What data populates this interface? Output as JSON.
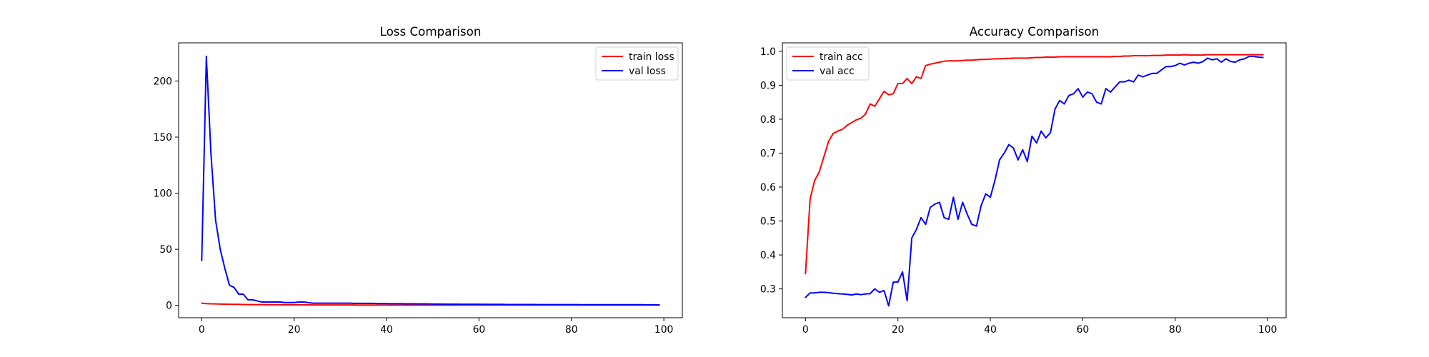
{
  "chart_data": [
    {
      "type": "line",
      "title": "Loss Comparison",
      "xlabel": "",
      "ylabel": "",
      "xlim": [
        -5,
        104
      ],
      "ylim": [
        -11,
        234
      ],
      "xticks": [
        0,
        20,
        40,
        60,
        80,
        100
      ],
      "yticks": [
        0,
        50,
        100,
        150,
        200
      ],
      "grid": false,
      "legend": "upper right",
      "series": [
        {
          "name": "train loss",
          "color": "#ff0000",
          "x": [
            0,
            1,
            2,
            3,
            4,
            5,
            6,
            7,
            8,
            9,
            10,
            11,
            12,
            13,
            14,
            15,
            16,
            17,
            18,
            19,
            20,
            21,
            22,
            23,
            24,
            25,
            26,
            27,
            28,
            29,
            30,
            31,
            32,
            33,
            34,
            35,
            36,
            37,
            38,
            39,
            40,
            41,
            42,
            43,
            44,
            45,
            46,
            47,
            48,
            49,
            50,
            51,
            52,
            53,
            54,
            55,
            56,
            57,
            58,
            59,
            60,
            61,
            62,
            63,
            64,
            65,
            66,
            67,
            68,
            69,
            70,
            71,
            72,
            73,
            74,
            75,
            76,
            77,
            78,
            79,
            80,
            81,
            82,
            83,
            84,
            85,
            86,
            87,
            88,
            89,
            90,
            91,
            92,
            93,
            94,
            95,
            96,
            97,
            98,
            99
          ],
          "y": [
            2.0,
            1.6,
            1.4,
            1.3,
            1.2,
            1.1,
            1.0,
            0.9,
            0.9,
            0.8,
            0.8,
            0.7,
            0.7,
            0.7,
            0.6,
            0.6,
            0.6,
            0.6,
            0.5,
            0.5,
            0.5,
            0.5,
            0.5,
            0.5,
            0.4,
            0.4,
            0.4,
            0.4,
            0.4,
            0.4,
            0.4,
            0.4,
            0.4,
            0.4,
            0.3,
            0.3,
            0.3,
            0.3,
            0.3,
            0.3,
            0.3,
            0.3,
            0.3,
            0.3,
            0.3,
            0.3,
            0.3,
            0.3,
            0.3,
            0.3,
            0.3,
            0.3,
            0.3,
            0.3,
            0.3,
            0.3,
            0.3,
            0.3,
            0.3,
            0.3,
            0.3,
            0.3,
            0.3,
            0.3,
            0.3,
            0.3,
            0.3,
            0.3,
            0.3,
            0.3,
            0.3,
            0.3,
            0.3,
            0.3,
            0.3,
            0.3,
            0.3,
            0.3,
            0.3,
            0.3,
            0.3,
            0.3,
            0.3,
            0.3,
            0.3,
            0.3,
            0.3,
            0.3,
            0.3,
            0.3,
            0.3,
            0.3,
            0.3,
            0.3,
            0.3,
            0.3,
            0.3,
            0.3,
            0.3,
            0.3
          ]
        },
        {
          "name": "val loss",
          "color": "#0000ff",
          "x": [
            0,
            1,
            2,
            3,
            4,
            5,
            6,
            7,
            8,
            9,
            10,
            11,
            12,
            13,
            14,
            15,
            16,
            17,
            18,
            19,
            20,
            21,
            22,
            23,
            24,
            25,
            26,
            27,
            28,
            29,
            30,
            31,
            32,
            33,
            34,
            35,
            36,
            37,
            38,
            39,
            40,
            41,
            42,
            43,
            44,
            45,
            46,
            47,
            48,
            49,
            50,
            51,
            52,
            53,
            54,
            55,
            56,
            57,
            58,
            59,
            60,
            61,
            62,
            63,
            64,
            65,
            66,
            67,
            68,
            69,
            70,
            71,
            72,
            73,
            74,
            75,
            76,
            77,
            78,
            79,
            80,
            81,
            82,
            83,
            84,
            85,
            86,
            87,
            88,
            89,
            90,
            91,
            92,
            93,
            94,
            95,
            96,
            97,
            98,
            99
          ],
          "y": [
            40,
            222,
            135,
            76,
            50,
            33,
            18,
            16,
            10,
            10,
            5,
            5,
            4,
            3,
            3,
            3,
            3,
            3,
            2.5,
            2.5,
            2.5,
            3,
            3,
            2.5,
            2,
            2,
            2,
            2,
            2,
            2,
            2,
            2,
            2,
            1.8,
            1.8,
            1.8,
            1.8,
            1.8,
            1.6,
            1.6,
            1.6,
            1.5,
            1.5,
            1.5,
            1.4,
            1.4,
            1.4,
            1.3,
            1.3,
            1.3,
            1.2,
            1.2,
            1.2,
            1.1,
            1.1,
            1.1,
            1.0,
            1.0,
            1.0,
            1.0,
            1.0,
            0.9,
            0.9,
            0.9,
            0.9,
            0.9,
            0.8,
            0.8,
            0.8,
            0.8,
            0.8,
            0.8,
            0.8,
            0.7,
            0.7,
            0.7,
            0.7,
            0.7,
            0.7,
            0.7,
            0.7,
            0.7,
            0.6,
            0.6,
            0.6,
            0.6,
            0.6,
            0.6,
            0.6,
            0.6,
            0.6,
            0.6,
            0.6,
            0.6,
            0.6,
            0.6,
            0.5,
            0.5,
            0.5,
            0.5
          ]
        }
      ]
    },
    {
      "type": "line",
      "title": "Accuracy Comparison",
      "xlabel": "",
      "ylabel": "",
      "xlim": [
        -5,
        104
      ],
      "ylim": [
        0.215,
        1.025
      ],
      "xticks": [
        0,
        20,
        40,
        60,
        80,
        100
      ],
      "yticks": [
        0.3,
        0.4,
        0.5,
        0.6,
        0.7,
        0.8,
        0.9,
        1.0
      ],
      "grid": false,
      "legend": "upper left",
      "series": [
        {
          "name": "train acc",
          "color": "#ff0000",
          "x": [
            0,
            1,
            2,
            3,
            4,
            5,
            6,
            7,
            8,
            9,
            10,
            11,
            12,
            13,
            14,
            15,
            16,
            17,
            18,
            19,
            20,
            21,
            22,
            23,
            24,
            25,
            26,
            27,
            28,
            29,
            30,
            31,
            32,
            33,
            34,
            35,
            36,
            37,
            38,
            39,
            40,
            41,
            42,
            43,
            44,
            45,
            46,
            47,
            48,
            49,
            50,
            51,
            52,
            53,
            54,
            55,
            56,
            57,
            58,
            59,
            60,
            61,
            62,
            63,
            64,
            65,
            66,
            67,
            68,
            69,
            70,
            71,
            72,
            73,
            74,
            75,
            76,
            77,
            78,
            79,
            80,
            81,
            82,
            83,
            84,
            85,
            86,
            87,
            88,
            89,
            90,
            91,
            92,
            93,
            94,
            95,
            96,
            97,
            98,
            99
          ],
          "y": [
            0.345,
            0.565,
            0.62,
            0.645,
            0.69,
            0.735,
            0.758,
            0.765,
            0.77,
            0.782,
            0.79,
            0.798,
            0.803,
            0.815,
            0.845,
            0.838,
            0.86,
            0.882,
            0.872,
            0.875,
            0.905,
            0.905,
            0.92,
            0.905,
            0.925,
            0.92,
            0.958,
            0.962,
            0.965,
            0.968,
            0.971,
            0.972,
            0.972,
            0.972,
            0.973,
            0.974,
            0.974,
            0.975,
            0.976,
            0.976,
            0.977,
            0.978,
            0.978,
            0.979,
            0.979,
            0.98,
            0.98,
            0.98,
            0.98,
            0.981,
            0.982,
            0.982,
            0.983,
            0.983,
            0.983,
            0.984,
            0.984,
            0.984,
            0.984,
            0.984,
            0.984,
            0.984,
            0.984,
            0.984,
            0.984,
            0.984,
            0.984,
            0.985,
            0.985,
            0.986,
            0.986,
            0.987,
            0.987,
            0.987,
            0.987,
            0.988,
            0.988,
            0.988,
            0.989,
            0.989,
            0.989,
            0.989,
            0.99,
            0.989,
            0.989,
            0.989,
            0.989,
            0.99,
            0.99,
            0.99,
            0.99,
            0.99,
            0.99,
            0.99,
            0.99,
            0.99,
            0.99,
            0.99,
            0.99,
            0.99
          ]
        },
        {
          "name": "val acc",
          "color": "#0000ff",
          "x": [
            0,
            1,
            2,
            3,
            4,
            5,
            6,
            7,
            8,
            9,
            10,
            11,
            12,
            13,
            14,
            15,
            16,
            17,
            18,
            19,
            20,
            21,
            22,
            23,
            24,
            25,
            26,
            27,
            28,
            29,
            30,
            31,
            32,
            33,
            34,
            35,
            36,
            37,
            38,
            39,
            40,
            41,
            42,
            43,
            44,
            45,
            46,
            47,
            48,
            49,
            50,
            51,
            52,
            53,
            54,
            55,
            56,
            57,
            58,
            59,
            60,
            61,
            62,
            63,
            64,
            65,
            66,
            67,
            68,
            69,
            70,
            71,
            72,
            73,
            74,
            75,
            76,
            77,
            78,
            79,
            80,
            81,
            82,
            83,
            84,
            85,
            86,
            87,
            88,
            89,
            90,
            91,
            92,
            93,
            94,
            95,
            96,
            97,
            98,
            99
          ],
          "y": [
            0.275,
            0.288,
            0.288,
            0.29,
            0.29,
            0.289,
            0.287,
            0.286,
            0.285,
            0.284,
            0.282,
            0.285,
            0.283,
            0.285,
            0.286,
            0.3,
            0.29,
            0.295,
            0.25,
            0.32,
            0.32,
            0.35,
            0.265,
            0.45,
            0.475,
            0.51,
            0.49,
            0.54,
            0.55,
            0.555,
            0.51,
            0.505,
            0.57,
            0.505,
            0.555,
            0.52,
            0.49,
            0.485,
            0.545,
            0.58,
            0.57,
            0.62,
            0.68,
            0.7,
            0.725,
            0.715,
            0.68,
            0.71,
            0.675,
            0.75,
            0.73,
            0.765,
            0.745,
            0.76,
            0.83,
            0.855,
            0.845,
            0.87,
            0.875,
            0.89,
            0.865,
            0.88,
            0.875,
            0.85,
            0.845,
            0.89,
            0.88,
            0.895,
            0.91,
            0.91,
            0.915,
            0.91,
            0.93,
            0.925,
            0.93,
            0.935,
            0.935,
            0.945,
            0.955,
            0.955,
            0.958,
            0.965,
            0.96,
            0.965,
            0.968,
            0.965,
            0.97,
            0.98,
            0.975,
            0.978,
            0.968,
            0.978,
            0.97,
            0.968,
            0.975,
            0.978,
            0.985,
            0.985,
            0.983,
            0.982
          ]
        }
      ]
    }
  ]
}
